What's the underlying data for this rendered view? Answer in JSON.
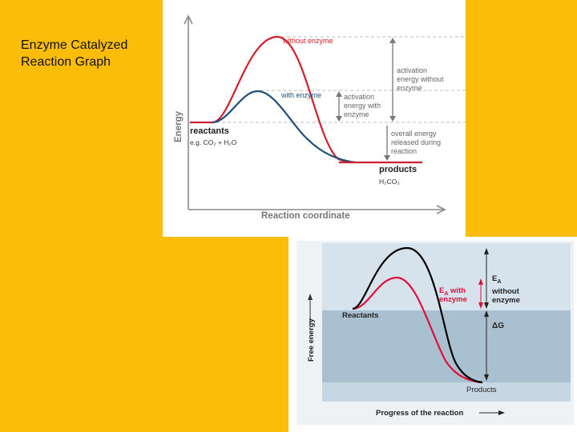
{
  "slide": {
    "title_line1": "Enzyme Catalyzed",
    "title_line2": "Reaction Graph"
  },
  "colors": {
    "background": "#fbbd07",
    "curve_without_enzyme": "#d0202a",
    "curve_with_enzyme": "#1f4f7a",
    "arrow_gray": "#777777",
    "bottom_curve_without": "#000000",
    "bottom_curve_with": "#e0103a",
    "band_light": "#d6e3ec",
    "band_dark": "#a9c0d0"
  },
  "top_diagram": {
    "y_axis_label": "Energy",
    "x_axis_label": "Reaction coordinate",
    "curve_without_label": "without enzyme",
    "curve_with_label": "with enzyme",
    "reactants_label": "reactants",
    "reactants_example": "e.g. CO₂ + H₂O",
    "products_label": "products",
    "products_formula": "H₂CO₃",
    "ea_without_lines": [
      "activation",
      "energy without",
      "enzyme"
    ],
    "ea_with_lines": [
      "activation",
      "energy with",
      "enzyme"
    ],
    "released_lines": [
      "overall energy",
      "released during",
      "reaction"
    ]
  },
  "bottom_diagram": {
    "y_axis_label": "Free energy",
    "x_axis_label": "Progress of the reaction",
    "reactants_label": "Reactants",
    "products_label": "Products",
    "ea_with_line1": "E",
    "ea_with_sub": "A",
    "ea_with_line1_rest": " with",
    "ea_with_line2": "enzyme",
    "ea_without_line1": "E",
    "ea_without_sub": "A",
    "ea_without_line2": "without",
    "ea_without_line3": "enzyme",
    "delta_g_label": "ΔG"
  }
}
